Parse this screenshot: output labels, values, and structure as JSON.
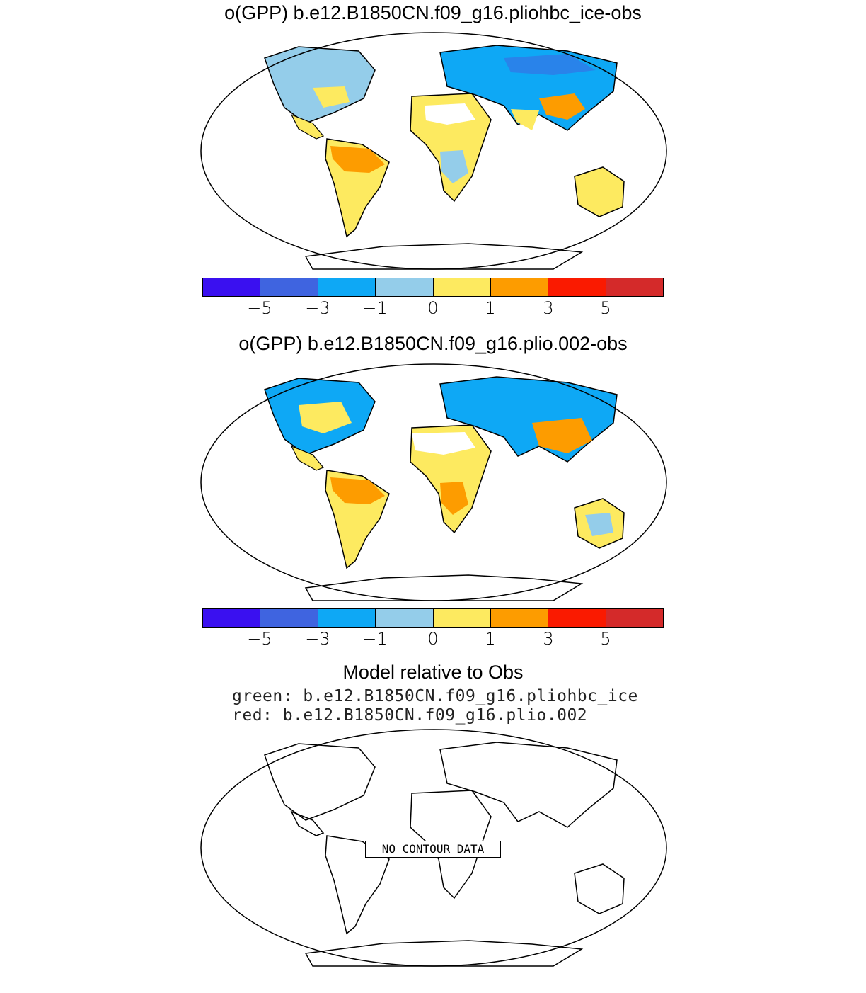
{
  "panels": [
    {
      "title": "o(GPP) b.e12.B1850CN.f09_g16.pliohbc_ice-obs"
    },
    {
      "title": "o(GPP) b.e12.B1850CN.f09_g16.plio.002-obs"
    }
  ],
  "colorbar": {
    "colors": [
      "#3a10f0",
      "#3f64e0",
      "#0ea8f5",
      "#94cdea",
      "#fdea60",
      "#fd9c00",
      "#fa1a00",
      "#d42a2a"
    ],
    "tick_labels": [
      "−5",
      "−3",
      "−1",
      "0",
      "1",
      "3",
      "5"
    ]
  },
  "comparison": {
    "title": "Model relative to Obs",
    "green_line": "green: b.e12.B1850CN.f09_g16.pliohbc_ice",
    "red_line": "red: b.e12.B1850CN.f09_g16.plio.002",
    "no_data_label": "NO CONTOUR DATA"
  }
}
